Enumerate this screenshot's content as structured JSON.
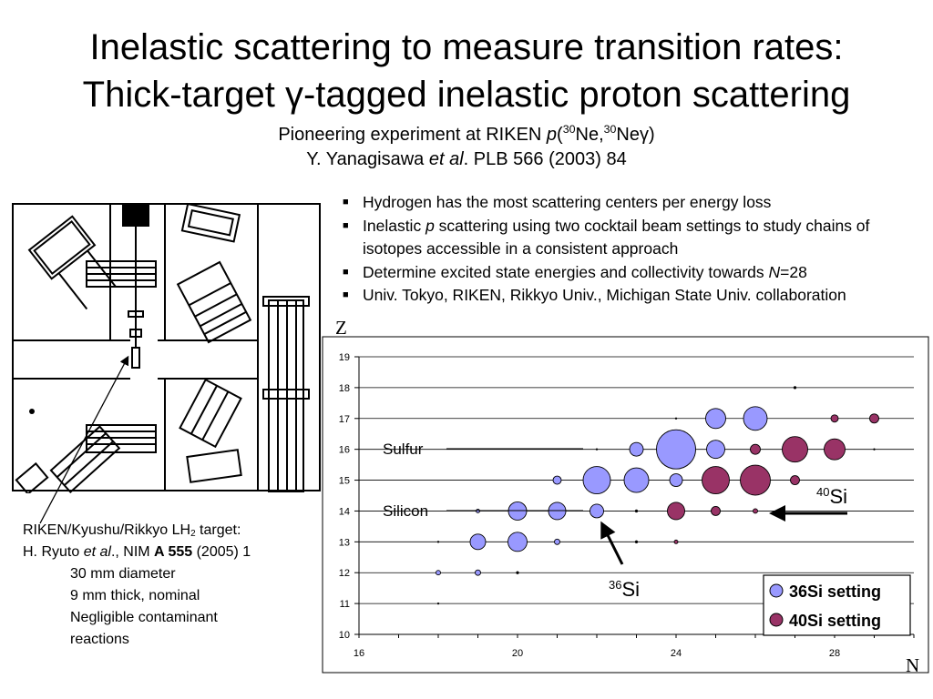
{
  "title": {
    "line1": "Inelastic scattering to measure transition rates:",
    "line2_pre": "Thick-target ",
    "line2_gamma": "γ",
    "line2_post": "-tagged inelastic proton scattering"
  },
  "subtitle": {
    "line1_pre": "Pioneering experiment at RIKEN ",
    "line1_p": "p",
    "line1_paren": "(",
    "line1_mass1": "30",
    "line1_ne": "Ne,",
    "line1_mass2": "30",
    "line1_ne2": "Ne",
    "line1_gamma": "γ",
    "line1_close": ")",
    "line2_pre": "Y. Yanagisawa ",
    "line2_etal": "et al",
    "line2_post": ". PLB 566 (2003) 84"
  },
  "bullets": {
    "marker": "■",
    "b1": "Hydrogen has the most scattering centers per energy loss",
    "b2_pre": "Inelastic ",
    "b2_p": "p",
    "b2_post": " scattering using two cocktail beam settings to study chains of isotopes accessible in a consistent approach",
    "b3_pre": "Determine excited state energies and collectivity towards ",
    "b3_n": "N",
    "b3_post": "=28",
    "b4": "Univ. Tokyo, RIKEN, Rikkyo Univ., Michigan State Univ. collaboration"
  },
  "caption": {
    "l1_pre": "RIKEN/Kyushu/Rikkyo LH",
    "l1_sub": "2",
    "l1_post": " target:",
    "l2_pre": "H. Ryuto ",
    "l2_etal": "et al",
    "l2_mid": "., NIM ",
    "l2_bold": "A 555",
    "l2_post": " (2005) 1",
    "l3": "30 mm diameter",
    "l4": "9 mm thick, nominal",
    "l5": "Negligible contaminant",
    "l6": "reactions"
  },
  "chart_data": {
    "type": "scatter",
    "x_axis_letter": "N",
    "y_axis_letter": "Z",
    "xlim": [
      16,
      30
    ],
    "ylim": [
      10,
      19
    ],
    "x_ticks": [
      "16",
      "20",
      "24",
      "28"
    ],
    "y_ticks": [
      "10",
      "11",
      "12",
      "13",
      "14",
      "15",
      "16",
      "17",
      "18",
      "19"
    ],
    "grid": "horizontal",
    "legend_position": "bottom-right",
    "colors": {
      "si36": "#9999ff",
      "si40": "#993366",
      "frame": "#000000"
    },
    "series": [
      {
        "name": "36Si setting",
        "points": [
          {
            "x": 18,
            "y": 11,
            "r": 1
          },
          {
            "x": 18,
            "y": 12,
            "r": 2.5
          },
          {
            "x": 19,
            "y": 12,
            "r": 3
          },
          {
            "x": 20,
            "y": 12,
            "r": 1.5
          },
          {
            "x": 18,
            "y": 13,
            "r": 1
          },
          {
            "x": 19,
            "y": 13,
            "r": 8.5
          },
          {
            "x": 20,
            "y": 13,
            "r": 10.5
          },
          {
            "x": 21,
            "y": 13,
            "r": 3
          },
          {
            "x": 19,
            "y": 14,
            "r": 2
          },
          {
            "x": 20,
            "y": 14,
            "r": 10
          },
          {
            "x": 21,
            "y": 14,
            "r": 9.5
          },
          {
            "x": 22,
            "y": 14,
            "r": 7.5
          },
          {
            "x": 23,
            "y": 14,
            "r": 1.5
          },
          {
            "x": 21,
            "y": 15,
            "r": 4.5
          },
          {
            "x": 22,
            "y": 15,
            "r": 15
          },
          {
            "x": 23,
            "y": 15,
            "r": 13.5
          },
          {
            "x": 24,
            "y": 15,
            "r": 7
          },
          {
            "x": 22,
            "y": 16,
            "r": 1
          },
          {
            "x": 23,
            "y": 16,
            "r": 7.5
          },
          {
            "x": 24,
            "y": 16,
            "r": 21.5
          },
          {
            "x": 25,
            "y": 16,
            "r": 10
          },
          {
            "x": 24,
            "y": 17,
            "r": 1
          },
          {
            "x": 25,
            "y": 17,
            "r": 11
          },
          {
            "x": 26,
            "y": 17,
            "r": 13
          },
          {
            "x": 27,
            "y": 18,
            "r": 1.5
          },
          {
            "x": 29,
            "y": 16,
            "r": 1
          }
        ]
      },
      {
        "name": "40Si setting",
        "points": [
          {
            "x": 23,
            "y": 13,
            "r": 1.5
          },
          {
            "x": 24,
            "y": 13,
            "r": 2
          },
          {
            "x": 24,
            "y": 14,
            "r": 9.5
          },
          {
            "x": 25,
            "y": 14,
            "r": 5
          },
          {
            "x": 26,
            "y": 14,
            "r": 2.5
          },
          {
            "x": 25,
            "y": 15,
            "r": 15
          },
          {
            "x": 26,
            "y": 15,
            "r": 16.5
          },
          {
            "x": 27,
            "y": 15,
            "r": 5
          },
          {
            "x": 26,
            "y": 16,
            "r": 5.5
          },
          {
            "x": 27,
            "y": 16,
            "r": 14
          },
          {
            "x": 28,
            "y": 16,
            "r": 11.5
          },
          {
            "x": 28,
            "y": 17,
            "r": 4
          },
          {
            "x": 29,
            "y": 17,
            "r": 5
          }
        ]
      }
    ],
    "annotations": {
      "sulfur": "Sulfur",
      "silicon": "Silicon",
      "si40_mass": "40",
      "si40_sym": "Si",
      "si36_mass": "36",
      "si36_sym": "Si"
    }
  }
}
